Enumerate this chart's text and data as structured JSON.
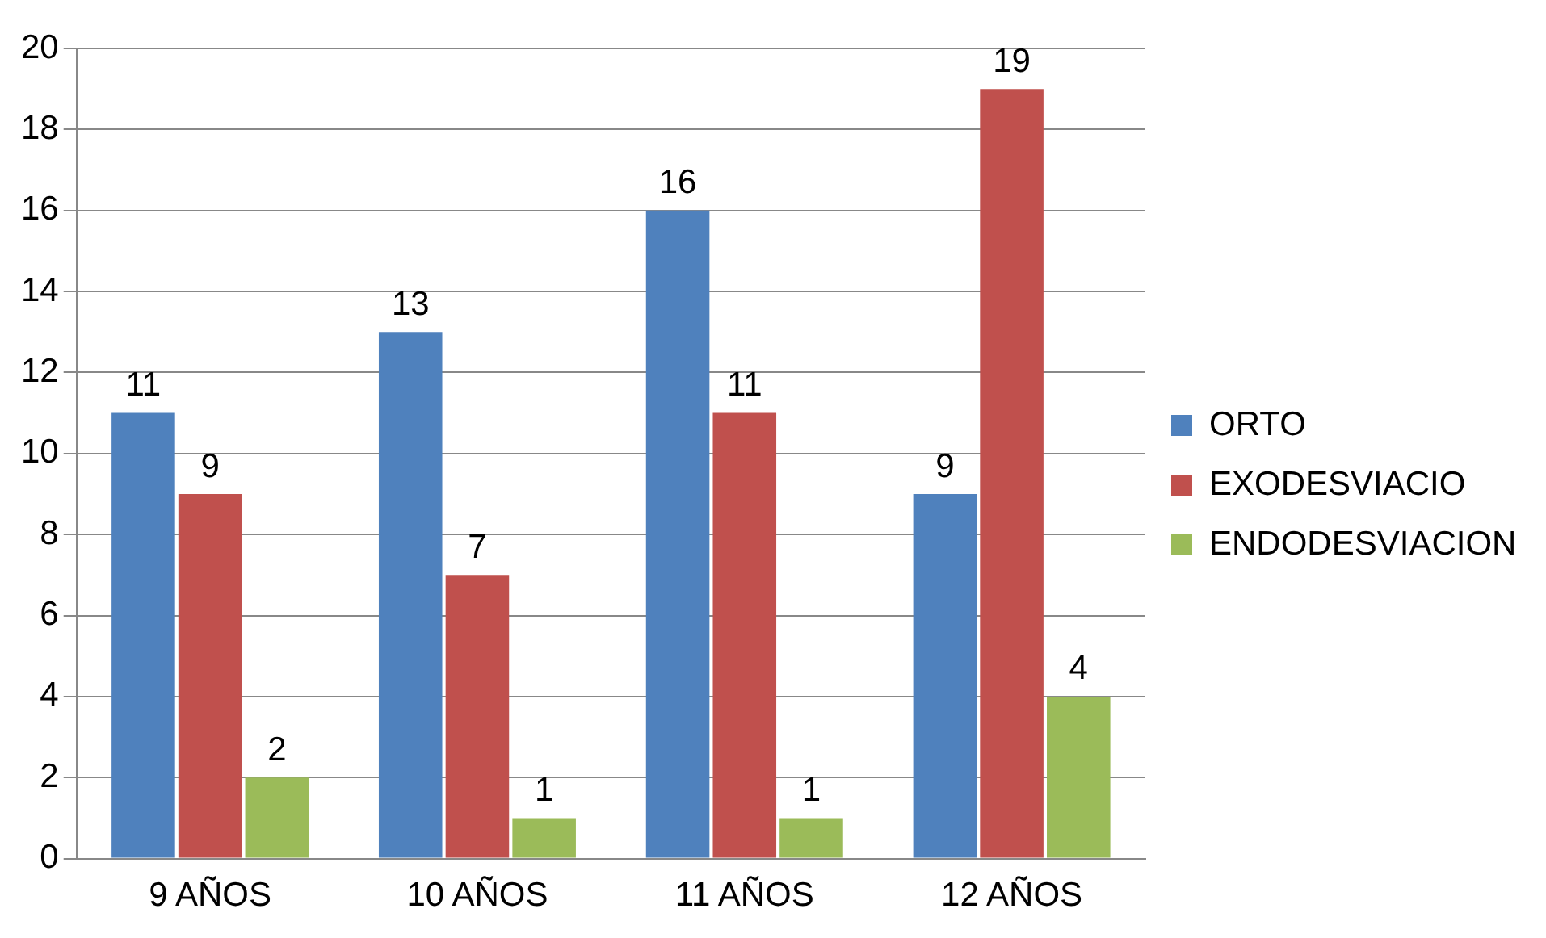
{
  "chart_data": {
    "type": "bar",
    "categories": [
      "9 AÑOS",
      "10 AÑOS",
      "11 AÑOS",
      "12 AÑOS"
    ],
    "series": [
      {
        "name": "ORTO",
        "color": "#4f81bd",
        "values": [
          11,
          13,
          16,
          9
        ]
      },
      {
        "name": "EXODESVIACIO",
        "color": "#c0504d",
        "values": [
          9,
          7,
          11,
          19
        ]
      },
      {
        "name": "ENDODESVIACION",
        "color": "#9bbb59",
        "values": [
          2,
          1,
          1,
          4
        ]
      }
    ],
    "ylim": [
      0,
      20
    ],
    "yticks": [
      0,
      2,
      4,
      6,
      8,
      10,
      12,
      14,
      16,
      18,
      20
    ],
    "grid": "y",
    "legend": "right",
    "data_labels": true
  }
}
